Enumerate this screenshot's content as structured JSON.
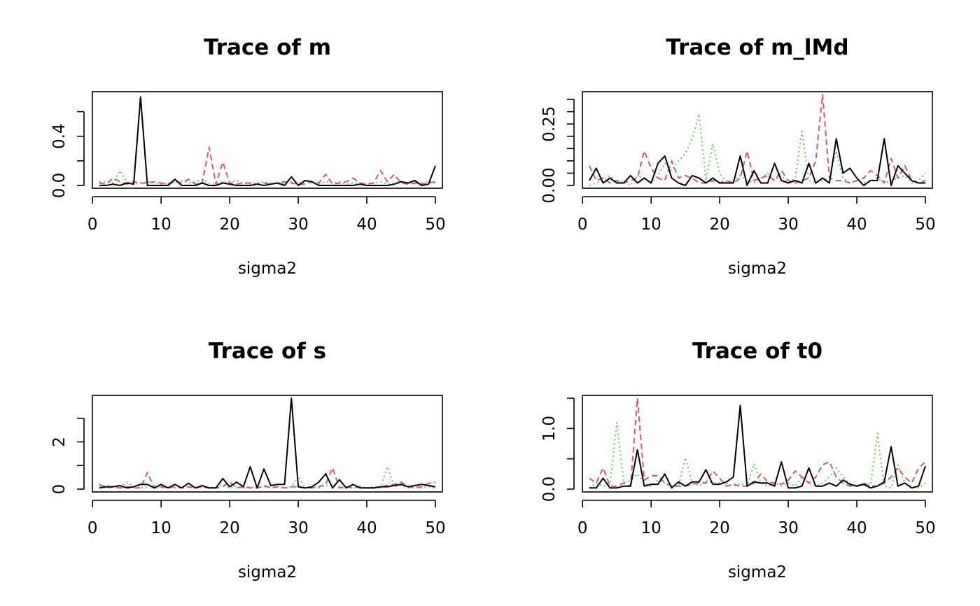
{
  "chart_data": [
    {
      "type": "line",
      "title": "Trace of m",
      "xlabel": "sigma2",
      "xlim": [
        1,
        50
      ],
      "ylim": [
        0,
        0.74
      ],
      "x_ticks": [
        0,
        10,
        20,
        30,
        40,
        50
      ],
      "y_ticks": [
        0,
        0.2,
        0.4,
        0.6
      ],
      "y_tick_labels": [
        "0.0",
        "",
        "0.4",
        ""
      ],
      "series": [
        {
          "color": "#000000",
          "dash": "",
          "values": [
            0.0,
            0.0,
            0.01,
            0.0,
            0.02,
            0.01,
            0.72,
            0.0,
            0.0,
            0.0,
            0.0,
            0.05,
            0.0,
            0.0,
            0.0,
            0.02,
            0.0,
            0.0,
            0.02,
            0.01,
            0.0,
            0.0,
            0.0,
            0.01,
            0.0,
            0.01,
            0.02,
            0.0,
            0.07,
            0.0,
            0.04,
            0.03,
            0.0,
            0.0,
            0.0,
            0.0,
            0.0,
            0.0,
            0.01,
            0.0,
            0.0,
            0.0,
            0.0,
            0.01,
            0.03,
            0.02,
            0.04,
            0.0,
            0.01,
            0.16
          ]
        },
        {
          "color": "#DF536B",
          "dash": "8 5",
          "values": [
            0.02,
            0.01,
            0.06,
            0.03,
            0.01,
            0.03,
            0.02,
            0.02,
            0.03,
            0.02,
            0.01,
            0.03,
            0.02,
            0.05,
            0.01,
            0.02,
            0.31,
            0.01,
            0.19,
            0.02,
            0.01,
            0.02,
            0.02,
            0.01,
            0.02,
            0.01,
            0.02,
            0.03,
            0.02,
            0.01,
            0.01,
            0.03,
            0.02,
            0.09,
            0.01,
            0.02,
            0.03,
            0.06,
            0.02,
            0.01,
            0.02,
            0.12,
            0.03,
            0.09,
            0.02,
            0.01,
            0.02,
            0.01,
            0.02,
            0.03
          ]
        },
        {
          "color": "#61D04F",
          "dash": "2 4",
          "values": [
            0.03,
            0.03,
            0.02,
            0.12,
            0.03,
            0.01,
            0.02,
            0.03,
            0.02,
            0.01,
            0.02,
            0.03,
            0.04,
            0.02,
            0.03,
            0.05,
            0.02,
            0.01,
            0.03,
            0.02,
            0.04,
            0.02,
            0.01,
            0.02,
            0.03,
            0.02,
            0.01,
            0.02,
            0.03,
            0.02,
            0.04,
            0.02,
            0.01,
            0.03,
            0.02,
            0.03,
            0.01,
            0.02,
            0.02,
            0.01,
            0.02,
            0.03,
            0.01,
            0.02,
            0.03,
            0.02,
            0.01,
            0.02,
            0.03,
            0.02
          ]
        }
      ]
    },
    {
      "type": "line",
      "title": "Trace of m_lMd",
      "xlabel": "sigma2",
      "xlim": [
        1,
        50
      ],
      "ylim": [
        0,
        0.37
      ],
      "x_ticks": [
        0,
        10,
        20,
        30,
        40,
        50
      ],
      "y_ticks": [
        0,
        0.05,
        0.1,
        0.15,
        0.2,
        0.25,
        0.3,
        0.35
      ],
      "y_tick_labels": [
        "0.00",
        "",
        "",
        "",
        "",
        "0.25",
        "",
        ""
      ],
      "series": [
        {
          "color": "#000000",
          "dash": "",
          "values": [
            0.02,
            0.07,
            0.01,
            0.03,
            0.01,
            0.01,
            0.04,
            0.01,
            0.03,
            0.01,
            0.09,
            0.12,
            0.03,
            0.01,
            0.0,
            0.04,
            0.03,
            0.01,
            0.03,
            0.01,
            0.01,
            0.01,
            0.12,
            0.0,
            0.06,
            0.01,
            0.01,
            0.09,
            0.02,
            0.01,
            0.02,
            0.01,
            0.09,
            0.01,
            0.03,
            0.01,
            0.19,
            0.05,
            0.07,
            0.03,
            0.0,
            0.02,
            0.02,
            0.19,
            0.0,
            0.08,
            0.05,
            0.02,
            0.01,
            0.01
          ]
        },
        {
          "color": "#DF536B",
          "dash": "8 5",
          "values": [
            0.08,
            0.02,
            0.03,
            0.01,
            0.02,
            0.01,
            0.02,
            0.03,
            0.14,
            0.07,
            0.03,
            0.02,
            0.1,
            0.03,
            0.04,
            0.03,
            0.01,
            0.01,
            0.02,
            0.01,
            0.02,
            0.01,
            0.03,
            0.14,
            0.02,
            0.03,
            0.04,
            0.02,
            0.06,
            0.02,
            0.01,
            0.02,
            0.03,
            0.1,
            0.37,
            0.03,
            0.02,
            0.02,
            0.01,
            0.02,
            0.03,
            0.06,
            0.04,
            0.01,
            0.11,
            0.03,
            0.08,
            0.02,
            0.01,
            0.02
          ]
        },
        {
          "color": "#61D04F",
          "dash": "2 4",
          "values": [
            0.0,
            0.01,
            0.02,
            0.04,
            0.01,
            0.02,
            0.0,
            0.04,
            0.03,
            0.01,
            0.04,
            0.09,
            0.06,
            0.1,
            0.13,
            0.19,
            0.29,
            0.02,
            0.17,
            0.05,
            0.01,
            0.02,
            0.04,
            0.02,
            0.01,
            0.03,
            0.05,
            0.02,
            0.04,
            0.01,
            0.03,
            0.22,
            0.02,
            0.01,
            0.02,
            0.03,
            0.14,
            0.03,
            0.01,
            0.02,
            0.01,
            0.02,
            0.03,
            0.01,
            0.02,
            0.03,
            0.04,
            0.01,
            0.02,
            0.05
          ]
        }
      ]
    },
    {
      "type": "line",
      "title": "Trace of s",
      "xlabel": "sigma2",
      "xlim": [
        1,
        50
      ],
      "ylim": [
        0,
        3.85
      ],
      "x_ticks": [
        0,
        10,
        20,
        30,
        40,
        50
      ],
      "y_ticks": [
        0,
        1,
        2,
        3
      ],
      "y_tick_labels": [
        "0",
        "",
        "2",
        ""
      ],
      "series": [
        {
          "color": "#000000",
          "dash": "",
          "values": [
            0.05,
            0.1,
            0.1,
            0.15,
            0.05,
            0.1,
            0.2,
            0.2,
            0.05,
            0.2,
            0.05,
            0.2,
            0.05,
            0.25,
            0.05,
            0.15,
            0.05,
            0.05,
            0.45,
            0.1,
            0.3,
            0.1,
            0.95,
            0.05,
            0.85,
            0.15,
            0.2,
            0.2,
            3.85,
            0.1,
            0.05,
            0.1,
            0.3,
            0.65,
            0.05,
            0.4,
            0.05,
            0.2,
            0.05,
            0.05,
            0.05,
            0.1,
            0.1,
            0.15,
            0.2,
            0.1,
            0.15,
            0.2,
            0.15,
            0.1
          ]
        },
        {
          "color": "#DF536B",
          "dash": "8 5",
          "values": [
            0.2,
            0.05,
            0.1,
            0.05,
            0.1,
            0.05,
            0.05,
            0.7,
            0.05,
            0.1,
            0.05,
            0.1,
            0.05,
            0.1,
            0.05,
            0.1,
            0.05,
            0.05,
            0.1,
            0.3,
            0.05,
            0.1,
            0.05,
            0.05,
            0.15,
            0.05,
            0.1,
            0.05,
            0.1,
            0.1,
            0.05,
            0.05,
            0.1,
            0.2,
            0.9,
            0.05,
            0.1,
            0.05,
            0.1,
            0.05,
            0.05,
            0.1,
            0.15,
            0.2,
            0.3,
            0.1,
            0.05,
            0.1,
            0.25,
            0.3
          ]
        },
        {
          "color": "#61D04F",
          "dash": "2 4",
          "values": [
            0.1,
            0.15,
            0.1,
            0.05,
            0.3,
            0.1,
            0.05,
            0.1,
            0.15,
            0.05,
            0.1,
            0.05,
            0.1,
            0.1,
            0.05,
            0.1,
            0.05,
            0.1,
            0.2,
            0.05,
            0.1,
            0.05,
            0.1,
            0.05,
            0.1,
            0.05,
            0.1,
            0.05,
            0.1,
            0.55,
            0.05,
            0.1,
            0.05,
            0.15,
            0.2,
            0.05,
            0.1,
            0.05,
            0.1,
            0.05,
            0.1,
            0.05,
            0.95,
            0.1,
            0.15,
            0.05,
            0.1,
            0.05,
            0.1,
            0.05
          ]
        }
      ]
    },
    {
      "type": "line",
      "title": "Trace of t0",
      "xlabel": "sigma2",
      "xlim": [
        1,
        50
      ],
      "ylim": [
        0,
        1.5
      ],
      "x_ticks": [
        0,
        10,
        20,
        30,
        40,
        50
      ],
      "y_ticks": [
        0,
        0.5,
        1.0,
        1.5
      ],
      "y_tick_labels": [
        "0.0",
        "",
        "1.0",
        ""
      ],
      "series": [
        {
          "color": "#000000",
          "dash": "",
          "values": [
            0.02,
            0.02,
            0.18,
            0.02,
            0.02,
            0.05,
            0.05,
            0.65,
            0.05,
            0.08,
            0.08,
            0.25,
            0.02,
            0.12,
            0.05,
            0.12,
            0.12,
            0.32,
            0.08,
            0.08,
            0.12,
            0.2,
            1.38,
            0.05,
            0.12,
            0.1,
            0.1,
            0.05,
            0.45,
            0.02,
            0.02,
            0.05,
            0.35,
            0.05,
            0.05,
            0.1,
            0.05,
            0.15,
            0.08,
            0.05,
            0.08,
            0.02,
            0.05,
            0.12,
            0.7,
            0.05,
            0.1,
            0.02,
            0.05,
            0.38
          ]
        },
        {
          "color": "#DF536B",
          "dash": "8 5",
          "values": [
            0.18,
            0.1,
            0.35,
            0.05,
            0.05,
            0.1,
            0.05,
            1.5,
            0.15,
            0.22,
            0.22,
            0.1,
            0.05,
            0.05,
            0.05,
            0.08,
            0.1,
            0.1,
            0.3,
            0.18,
            0.05,
            0.08,
            0.05,
            0.05,
            0.1,
            0.25,
            0.12,
            0.1,
            0.08,
            0.15,
            0.3,
            0.2,
            0.1,
            0.2,
            0.4,
            0.45,
            0.2,
            0.1,
            0.05,
            0.05,
            0.1,
            0.05,
            0.05,
            0.1,
            0.2,
            0.35,
            0.2,
            0.1,
            0.35,
            0.45
          ]
        },
        {
          "color": "#61D04F",
          "dash": "2 4",
          "values": [
            0.02,
            0.1,
            0.05,
            0.08,
            1.1,
            0.1,
            0.15,
            0.25,
            0.1,
            0.05,
            0.15,
            0.1,
            0.05,
            0.05,
            0.52,
            0.1,
            0.05,
            0.15,
            0.1,
            0.1,
            0.1,
            0.05,
            0.1,
            0.05,
            0.42,
            0.1,
            0.05,
            0.1,
            0.05,
            0.1,
            0.05,
            0.2,
            0.1,
            0.05,
            0.1,
            0.2,
            0.35,
            0.2,
            0.1,
            0.05,
            0.1,
            0.05,
            0.92,
            0.05,
            0.02,
            0.4,
            0.1,
            0.05,
            0.02,
            0.1
          ]
        }
      ]
    }
  ]
}
